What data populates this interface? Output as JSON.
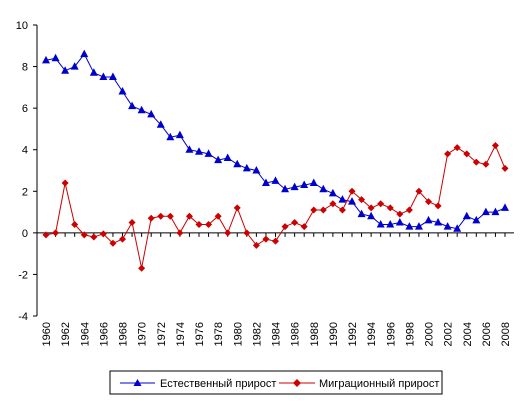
{
  "chart_data": {
    "type": "line",
    "title": "",
    "xlabel": "",
    "ylabel": "",
    "ylim": [
      -4,
      10
    ],
    "yticks": [
      -4,
      -2,
      0,
      2,
      4,
      6,
      8,
      10
    ],
    "xlim": [
      1960,
      2008
    ],
    "xticks": [
      1960,
      1962,
      1964,
      1966,
      1968,
      1970,
      1972,
      1974,
      1976,
      1978,
      1980,
      1982,
      1984,
      1986,
      1988,
      1990,
      1992,
      1994,
      1996,
      1998,
      2000,
      2002,
      2004,
      2006,
      2008
    ],
    "x": [
      1960,
      1961,
      1962,
      1963,
      1964,
      1965,
      1966,
      1967,
      1968,
      1969,
      1970,
      1971,
      1972,
      1973,
      1974,
      1975,
      1976,
      1977,
      1978,
      1979,
      1980,
      1981,
      1982,
      1983,
      1984,
      1985,
      1986,
      1987,
      1988,
      1989,
      1990,
      1991,
      1992,
      1993,
      1994,
      1995,
      1996,
      1997,
      1998,
      1999,
      2000,
      2001,
      2002,
      2003,
      2004,
      2005,
      2006,
      2007,
      2008
    ],
    "grid": false,
    "legend_position": "bottom",
    "series": [
      {
        "name": "Естественный прирост",
        "color": "#0000cc",
        "marker": "triangle",
        "values": [
          8.3,
          8.4,
          7.8,
          8.0,
          8.6,
          7.7,
          7.5,
          7.5,
          6.8,
          6.1,
          5.9,
          5.7,
          5.2,
          4.6,
          4.7,
          4.0,
          3.9,
          3.8,
          3.5,
          3.6,
          3.3,
          3.1,
          3.0,
          2.4,
          2.5,
          2.1,
          2.2,
          2.3,
          2.4,
          2.1,
          1.9,
          1.6,
          1.5,
          0.9,
          0.8,
          0.4,
          0.4,
          0.5,
          0.3,
          0.3,
          0.6,
          0.5,
          0.3,
          0.2,
          0.8,
          0.6,
          1.0,
          1.0,
          1.2
        ]
      },
      {
        "name": "Миграционный прирост",
        "color": "#cc0000",
        "marker": "diamond",
        "values": [
          -0.1,
          0.0,
          2.4,
          0.4,
          -0.1,
          -0.2,
          -0.05,
          -0.5,
          -0.3,
          0.5,
          -1.7,
          0.7,
          0.8,
          0.8,
          0.0,
          0.8,
          0.4,
          0.4,
          0.8,
          0.0,
          1.2,
          0.0,
          -0.6,
          -0.3,
          -0.4,
          0.3,
          0.5,
          0.3,
          1.1,
          1.1,
          1.4,
          1.1,
          2.0,
          1.6,
          1.2,
          1.4,
          1.2,
          0.9,
          1.1,
          2.0,
          1.5,
          1.3,
          3.8,
          4.1,
          3.8,
          3.4,
          3.3,
          4.2,
          3.1
        ]
      }
    ]
  }
}
